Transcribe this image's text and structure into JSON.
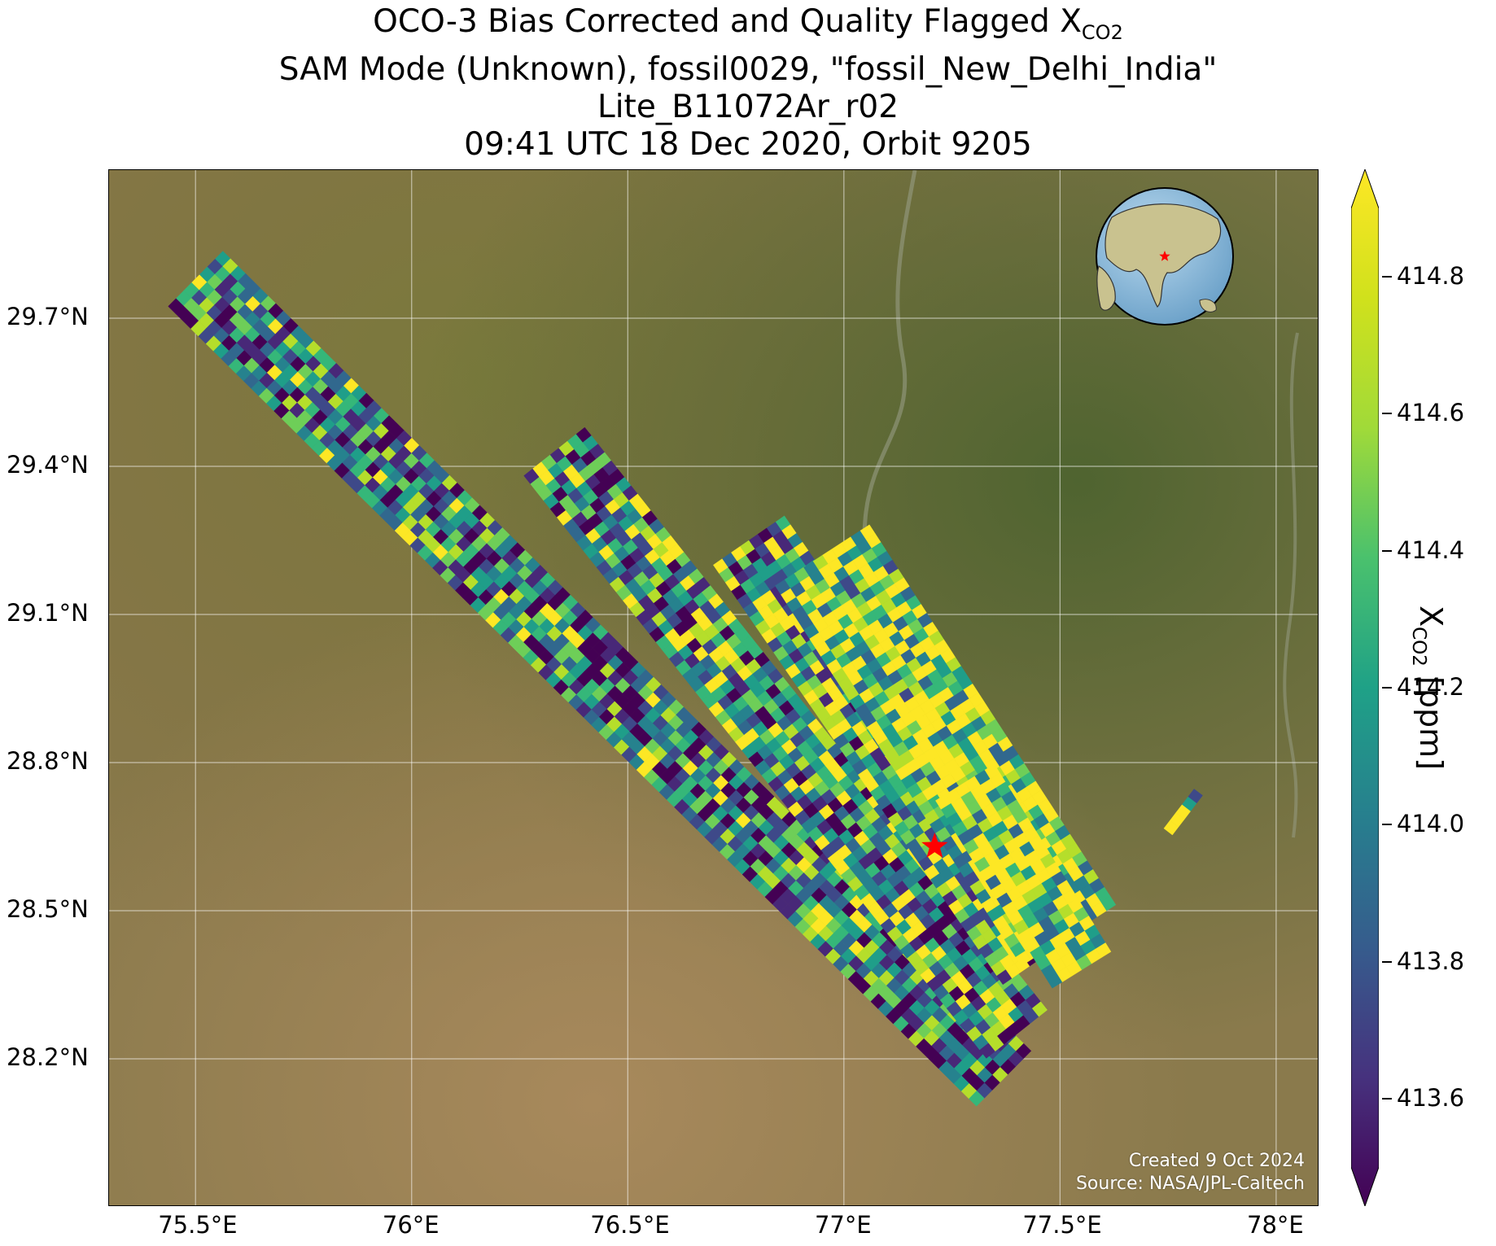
{
  "title": {
    "line1_prefix": "OCO-3 Bias Corrected and Quality Flagged X",
    "line1_sub": "CO2",
    "line2": "SAM Mode (Unknown), fossil0029, \"fossil_New_Delhi_India\"",
    "line3": "Lite_B11072Ar_r02",
    "line4": "09:41 UTC 18 Dec 2020, Orbit 9205"
  },
  "map": {
    "extent": {
      "lon_min": 75.3,
      "lon_max": 78.1,
      "lat_min": 27.9,
      "lat_max": 30.0
    },
    "lat_ticks": [
      "29.7°N",
      "29.4°N",
      "29.1°N",
      "28.8°N",
      "28.5°N",
      "28.2°N"
    ],
    "lon_ticks": [
      "75.5°E",
      "76°E",
      "76.5°E",
      "77°E",
      "77.5°E",
      "78°E"
    ],
    "target": {
      "name": "fossil_New_Delhi_India",
      "lon": 77.21,
      "lat": 28.63,
      "marker_color": "#ff0000"
    },
    "credit_line1": "Created 9 Oct 2024",
    "credit_line2": "Source: NASA/JPL-Caltech",
    "inset_globe": {
      "center_lon": 77.2,
      "center_lat": 28.6,
      "marker_color": "#ff0000"
    }
  },
  "colorbar": {
    "colormap": "viridis",
    "min": 413.5,
    "max": 414.9,
    "extend": "both",
    "tick_values": [
      413.6,
      413.8,
      414.0,
      414.2,
      414.4,
      414.6,
      414.8
    ],
    "tick_labels": [
      "413.6",
      "413.8",
      "414.0",
      "414.2",
      "414.4",
      "414.6",
      "414.8"
    ],
    "label_prefix": "X",
    "label_sub": "CO2",
    "label_suffix": " [ppm]"
  },
  "swaths": [
    {
      "name": "swath-west",
      "start": [
        75.5,
        29.78
      ],
      "end": [
        77.37,
        28.16
      ],
      "width_deg": 0.18,
      "bias": -0.1
    },
    {
      "name": "swath-center-west",
      "start": [
        76.33,
        29.43
      ],
      "end": [
        77.4,
        28.25
      ],
      "width_deg": 0.18,
      "bias": 0.05
    },
    {
      "name": "swath-center",
      "start": [
        76.78,
        29.25
      ],
      "end": [
        77.45,
        28.4
      ],
      "width_deg": 0.2,
      "bias": 0.15
    },
    {
      "name": "swath-east",
      "start": [
        76.95,
        29.22
      ],
      "end": [
        77.52,
        28.45
      ],
      "width_deg": 0.26,
      "bias": 0.45
    },
    {
      "name": "swath-southeast",
      "start": [
        77.28,
        28.76
      ],
      "end": [
        77.55,
        28.38
      ],
      "width_deg": 0.16,
      "bias": 0.5
    },
    {
      "name": "swath-fragment",
      "start": [
        77.82,
        28.74
      ],
      "end": [
        77.75,
        28.66
      ],
      "width_deg": 0.025,
      "bias": 0.1
    }
  ]
}
